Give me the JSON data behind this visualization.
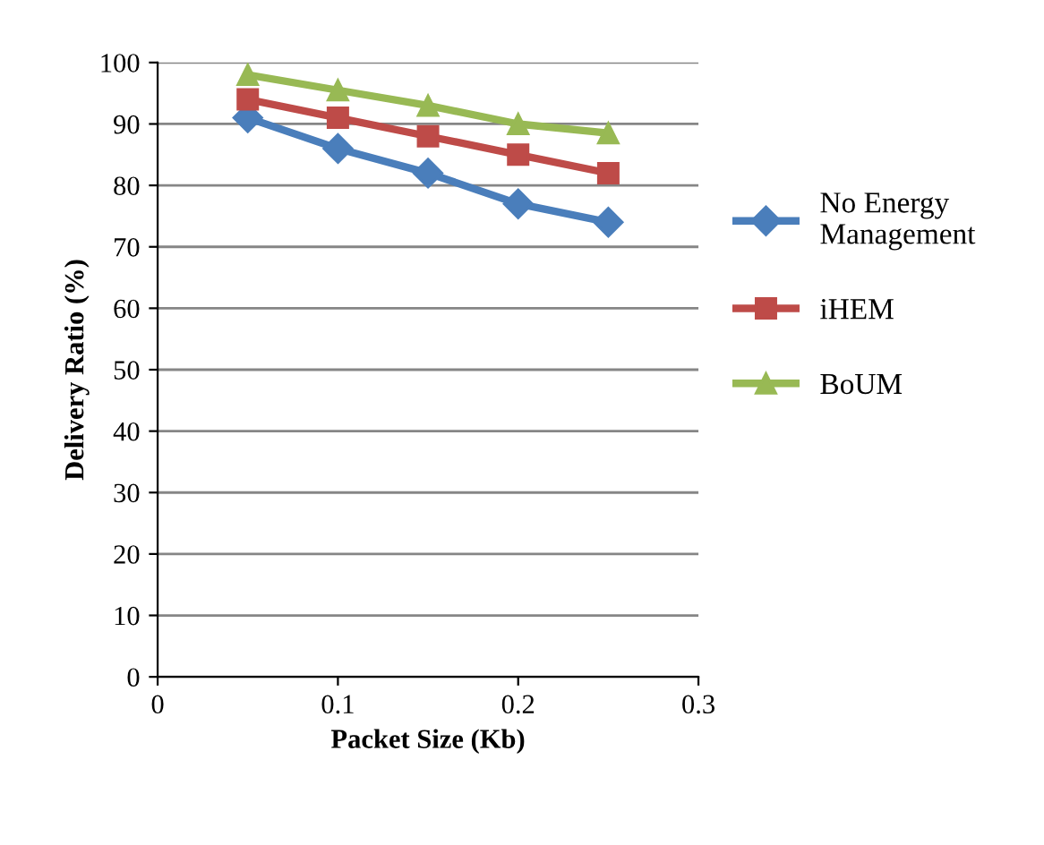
{
  "chart_data": {
    "type": "line",
    "xlabel": "Packet Size (Kb)",
    "ylabel": "Delivery Ratio (%)",
    "x": [
      0.05,
      0.1,
      0.15,
      0.2,
      0.25
    ],
    "series": [
      {
        "name": "No Energy\nManagement",
        "color": "#4a7ebb",
        "marker": "diamond",
        "values": [
          91,
          86,
          82,
          77,
          74
        ]
      },
      {
        "name": "iHEM",
        "color": "#be4b48",
        "marker": "square",
        "values": [
          94,
          91,
          88,
          85,
          82
        ]
      },
      {
        "name": "BoUM",
        "color": "#98b954",
        "marker": "triangle",
        "values": [
          98,
          95.5,
          93,
          90,
          88.5
        ]
      }
    ],
    "xlim": [
      0,
      0.3
    ],
    "xticks": [
      0,
      0.1,
      0.2,
      0.3
    ],
    "ylim": [
      0,
      100
    ],
    "yticks": [
      0,
      10,
      20,
      30,
      40,
      50,
      60,
      70,
      80,
      90,
      100
    ],
    "grid": "y",
    "legend": "right"
  }
}
